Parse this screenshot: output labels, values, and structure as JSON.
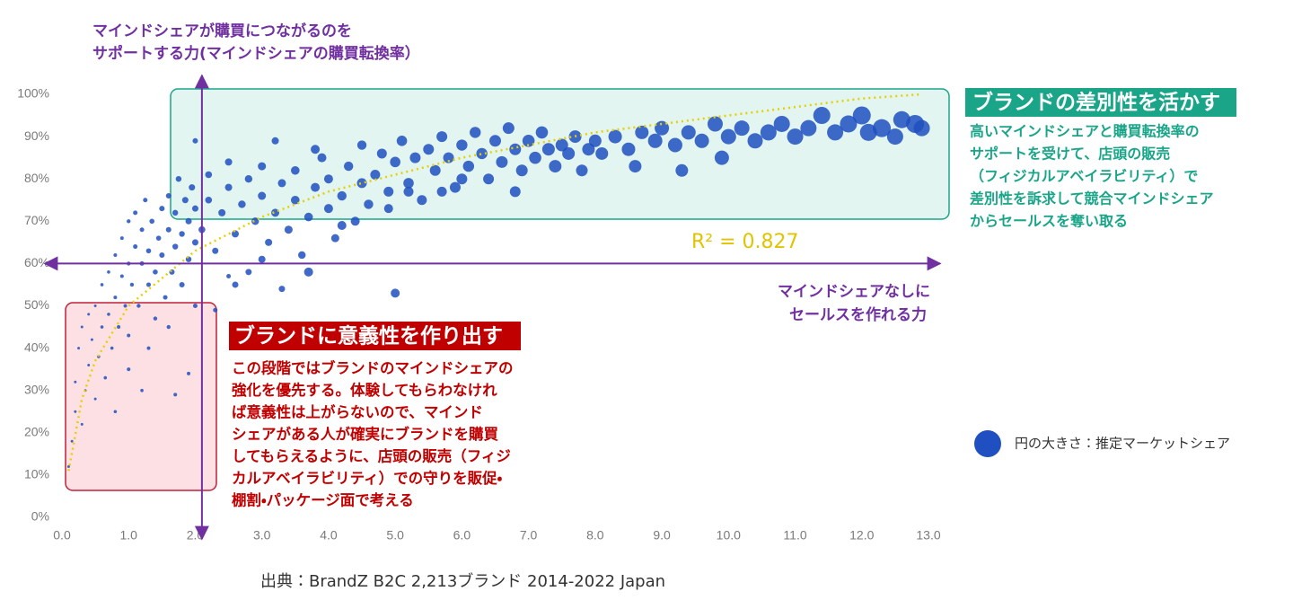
{
  "chart_data": {
    "type": "scatter",
    "y_title_lines": [
      "マインドシェアが購買につながるのを",
      "サポートする力(マインドシェアの購買転換率）"
    ],
    "x_title_lines": [
      "マインドシェアなしに",
      "セールスを作れる力"
    ],
    "xlim": [
      0,
      13
    ],
    "ylim": [
      0,
      100
    ],
    "xticks": [
      {
        "value": 0,
        "label": "0.0"
      },
      {
        "value": 1,
        "label": "1.0"
      },
      {
        "value": 2,
        "label": "2.0"
      },
      {
        "value": 3,
        "label": "3.0"
      },
      {
        "value": 4,
        "label": "4.0"
      },
      {
        "value": 5,
        "label": "5.0"
      },
      {
        "value": 6,
        "label": "6.0"
      },
      {
        "value": 7,
        "label": "7.0"
      },
      {
        "value": 8,
        "label": "8.0"
      },
      {
        "value": 9,
        "label": "9.0"
      },
      {
        "value": 10,
        "label": "10.0"
      },
      {
        "value": 11,
        "label": "11.0"
      },
      {
        "value": 12,
        "label": "12.0"
      },
      {
        "value": 13,
        "label": "13.0"
      }
    ],
    "yticks": [
      {
        "value": 0,
        "label": "0%"
      },
      {
        "value": 10,
        "label": "10%"
      },
      {
        "value": 20,
        "label": "20%"
      },
      {
        "value": 30,
        "label": "30%"
      },
      {
        "value": 40,
        "label": "40%"
      },
      {
        "value": 50,
        "label": "50%"
      },
      {
        "value": 60,
        "label": "60%"
      },
      {
        "value": 70,
        "label": "70%"
      },
      {
        "value": 80,
        "label": "80%"
      },
      {
        "value": 90,
        "label": "90%"
      },
      {
        "value": 100,
        "label": "100%"
      }
    ],
    "grid": false,
    "reference_lines": {
      "x": 2.1,
      "y": 60,
      "color": "#7030a0"
    },
    "series": [
      {
        "color": "#1f4fc0",
        "x": [
          0.1,
          0.15,
          0.2,
          0.2,
          0.25,
          0.3,
          0.3,
          0.35,
          0.4,
          0.4,
          0.45,
          0.5,
          0.5,
          0.55,
          0.6,
          0.6,
          0.65,
          0.7,
          0.7,
          0.75,
          0.8,
          0.8,
          0.85,
          0.9,
          0.9,
          0.95,
          1.0,
          1.0,
          1.0,
          1.05,
          1.1,
          1.1,
          1.15,
          1.2,
          1.2,
          1.25,
          1.3,
          1.3,
          1.35,
          1.4,
          1.4,
          1.45,
          1.5,
          1.5,
          1.55,
          1.6,
          1.6,
          1.65,
          1.7,
          1.7,
          1.75,
          1.8,
          1.8,
          1.85,
          1.9,
          1.9,
          1.95,
          2.0,
          2.0,
          2.0,
          1.0,
          1.3,
          1.7,
          2.0,
          1.6,
          1.9,
          2.3,
          2.5,
          0.8,
          1.2,
          2.1,
          2.2,
          2.2,
          2.3,
          2.4,
          2.5,
          2.5,
          2.6,
          2.7,
          2.8,
          2.8,
          2.9,
          3.0,
          3.0,
          3.1,
          3.2,
          3.3,
          3.3,
          3.4,
          3.5,
          3.5,
          3.6,
          3.7,
          3.7,
          3.8,
          3.9,
          4.0,
          4.0,
          4.1,
          4.2,
          4.3,
          4.4,
          4.5,
          4.5,
          4.6,
          3.2,
          2.6,
          3.0,
          4.2,
          3.8,
          4.7,
          4.8,
          4.9,
          5.0,
          5.0,
          5.1,
          5.2,
          5.3,
          5.4,
          5.5,
          5.6,
          5.7,
          5.8,
          5.9,
          6.0,
          6.1,
          6.2,
          6.3,
          6.4,
          6.5,
          6.6,
          6.7,
          6.8,
          6.9,
          7.0,
          7.1,
          7.2,
          7.3,
          7.4,
          7.5,
          5.2,
          6.8,
          7.6,
          7.7,
          7.8,
          7.9,
          8.0,
          6.0,
          5.7,
          4.9,
          8.1,
          8.3,
          8.5,
          8.7,
          8.9,
          9.0,
          9.2,
          9.3,
          9.4,
          9.6,
          9.8,
          10.0,
          10.2,
          10.4,
          10.6,
          10.8,
          11.0,
          11.2,
          11.4,
          11.6,
          11.8,
          12.0,
          12.1,
          12.3,
          12.5,
          12.6,
          12.8,
          12.9,
          9.9,
          8.6
        ],
        "values": [
          12,
          18,
          25,
          32,
          40,
          22,
          45,
          30,
          36,
          48,
          42,
          28,
          50,
          38,
          45,
          55,
          33,
          48,
          58,
          40,
          52,
          62,
          45,
          57,
          66,
          50,
          60,
          70,
          43,
          55,
          64,
          72,
          50,
          60,
          68,
          75,
          55,
          63,
          70,
          47,
          58,
          66,
          73,
          62,
          52,
          68,
          76,
          58,
          64,
          72,
          80,
          55,
          67,
          75,
          61,
          70,
          78,
          65,
          73,
          89,
          35,
          40,
          29,
          50,
          45,
          34,
          49,
          57,
          25,
          30,
          68,
          75,
          81,
          63,
          72,
          78,
          84,
          67,
          74,
          80,
          58,
          70,
          76,
          83,
          65,
          72,
          79,
          54,
          68,
          75,
          82,
          62,
          71,
          58,
          78,
          85,
          73,
          80,
          66,
          76,
          83,
          70,
          79,
          88,
          74,
          89,
          55,
          61,
          69,
          87,
          81,
          86,
          77,
          53,
          84,
          89,
          79,
          85,
          75,
          87,
          82,
          90,
          85,
          78,
          88,
          83,
          91,
          86,
          80,
          89,
          84,
          92,
          87,
          82,
          89,
          85,
          91,
          87,
          83,
          88,
          77,
          77,
          86,
          90,
          82,
          87,
          89,
          80,
          77,
          73,
          86,
          90,
          87,
          91,
          89,
          92,
          88,
          82,
          91,
          89,
          93,
          90,
          92,
          89,
          91,
          93,
          90,
          92,
          95,
          91,
          93,
          95,
          91,
          92,
          90,
          94,
          93,
          92,
          85,
          83
        ],
        "sizes": [
          1.5,
          1.5,
          1.5,
          1.5,
          1.5,
          1.5,
          1.5,
          1.5,
          1.5,
          1.5,
          1.5,
          1.5,
          1.5,
          1.8,
          1.8,
          1.8,
          1.8,
          1.8,
          1.8,
          1.8,
          2,
          2,
          2,
          2,
          2,
          2,
          2.2,
          2.2,
          2,
          2.2,
          2.5,
          2.5,
          2.2,
          2.5,
          2.5,
          2.5,
          2.5,
          2.8,
          2.8,
          2.2,
          2.8,
          2.8,
          3,
          3,
          2.5,
          3,
          3,
          3,
          3.2,
          3.2,
          3.2,
          3,
          3.2,
          3.5,
          3.2,
          3.5,
          3.5,
          3.5,
          3.5,
          3,
          2,
          2,
          2,
          2.5,
          2.2,
          2,
          2.5,
          2.5,
          1.8,
          1.8,
          3.8,
          3.8,
          3.8,
          3.5,
          4,
          4,
          4,
          4,
          4.2,
          4.2,
          3.5,
          4.2,
          4.5,
          4.5,
          4,
          4.5,
          4.5,
          3.5,
          4.5,
          4.8,
          4.8,
          4.2,
          4.8,
          5,
          5,
          5,
          5,
          5,
          4.5,
          5.2,
          5.2,
          5,
          5.5,
          5.2,
          5.2,
          4,
          3.5,
          4,
          5,
          5,
          5.5,
          5.5,
          5.5,
          5,
          5.8,
          5.8,
          5.8,
          6,
          5.5,
          6,
          6,
          6,
          6,
          6,
          6.2,
          6.2,
          6.2,
          6.2,
          6,
          6.5,
          6.5,
          6.5,
          6.5,
          6.5,
          6.8,
          6.8,
          6.8,
          7,
          7,
          7,
          5.5,
          6,
          7,
          7,
          6.5,
          7,
          7,
          6,
          5.5,
          5,
          7,
          7.5,
          7.5,
          7.5,
          8,
          8,
          8,
          7,
          8,
          8,
          8.5,
          8.5,
          8.5,
          8.5,
          9,
          9,
          9,
          9,
          9.5,
          9,
          9.5,
          10,
          9.5,
          10,
          9,
          9.5,
          10,
          9,
          8,
          7
        ]
      }
    ],
    "trendline": {
      "color": "#e8d000",
      "label": "R² = 0.827",
      "x": [
        0.1,
        0.3,
        0.5,
        1.0,
        2.0,
        3.0,
        4.0,
        5.0,
        6.0,
        7.0,
        8.0,
        9.0,
        10.0,
        11.0,
        12.0,
        12.9
      ],
      "values": [
        11,
        28,
        37,
        50,
        63,
        71,
        77,
        81,
        85,
        88,
        91,
        93,
        95,
        97,
        99,
        100
      ]
    },
    "size_legend": "円の大きさ：推定マーケットシェア",
    "green_box": {
      "title": "ブランドの差別性を活かす",
      "body": [
        "高いマインドシェアと購買転換率の",
        "サポートを受けて、店頭の販売",
        "（フィジカルアベイラビリティ）で",
        "差別性を訴求して競合マインドシェア",
        "からセールスを奪い取る"
      ]
    },
    "red_box": {
      "title": "ブランドに意義性を作り出す",
      "body": [
        "この段階ではブランドのマインドシェアの",
        "強化を優先する。体験してもらわなけれ",
        "ば意義性は上がらないので、マインド",
        "シェアがある人が確実にブランドを購買",
        "してもらえるように、店頭の販売（フィジ",
        "カルアベイラビリティ）での守りを販促・",
        "棚割・パッケージ面で考える"
      ]
    },
    "source": "出典：BrandZ B2C  2,213ブランド 2014-2022 Japan"
  }
}
